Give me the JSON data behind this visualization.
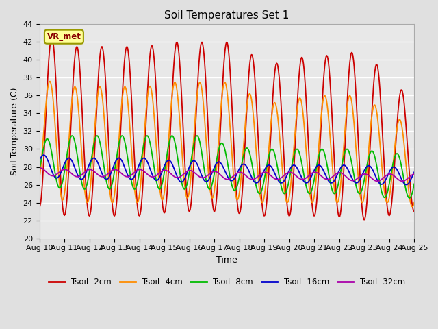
{
  "title": "Soil Temperatures Set 1",
  "xlabel": "Time",
  "ylabel": "Soil Temperature (C)",
  "ylim": [
    20,
    44
  ],
  "yticks": [
    20,
    22,
    24,
    26,
    28,
    30,
    32,
    34,
    36,
    38,
    40,
    42,
    44
  ],
  "n_days": 15,
  "n_points": 600,
  "annotation_text": "VR_met",
  "series": [
    {
      "label": "Tsoil -2cm",
      "color": "#CC0000",
      "amplitudes": [
        10.0,
        9.5,
        9.5,
        9.5,
        9.5,
        9.5,
        9.5,
        9.5,
        9.0,
        8.5,
        9.0,
        9.0,
        9.5,
        8.0,
        6.0
      ],
      "means": [
        33.5,
        32.0,
        32.0,
        32.0,
        32.0,
        32.5,
        32.5,
        32.5,
        31.5,
        31.0,
        31.5,
        31.5,
        31.5,
        30.5,
        29.0
      ],
      "phase": 0.0
    },
    {
      "label": "Tsoil -4cm",
      "color": "#FF8C00",
      "amplitudes": [
        6.0,
        6.5,
        6.5,
        6.5,
        6.5,
        6.5,
        6.5,
        6.5,
        6.0,
        5.5,
        6.0,
        6.0,
        6.0,
        5.0,
        4.5
      ],
      "means": [
        32.0,
        30.5,
        30.5,
        30.5,
        30.5,
        31.0,
        31.0,
        31.0,
        30.0,
        29.5,
        30.0,
        30.0,
        30.0,
        29.0,
        28.0
      ],
      "phase": 0.5
    },
    {
      "label": "Tsoil -8cm",
      "color": "#00BB00",
      "amplitudes": [
        2.5,
        3.0,
        3.0,
        3.0,
        3.0,
        3.0,
        3.0,
        2.5,
        2.5,
        2.5,
        2.5,
        2.5,
        2.5,
        2.5,
        2.5
      ],
      "means": [
        28.5,
        28.5,
        28.5,
        28.5,
        28.5,
        28.5,
        28.5,
        28.0,
        27.5,
        27.5,
        27.5,
        27.5,
        27.5,
        27.0,
        27.0
      ],
      "phase": 1.2
    },
    {
      "label": "Tsoil -16cm",
      "color": "#0000CC",
      "amplitudes": [
        1.2,
        1.2,
        1.2,
        1.2,
        1.2,
        1.2,
        1.2,
        1.0,
        1.0,
        1.0,
        1.0,
        1.0,
        1.0,
        1.0,
        1.0
      ],
      "means": [
        28.2,
        27.8,
        27.8,
        27.8,
        27.8,
        27.5,
        27.5,
        27.5,
        27.2,
        27.2,
        27.2,
        27.2,
        27.2,
        27.0,
        27.0
      ],
      "phase": 2.0
    },
    {
      "label": "Tsoil -32cm",
      "color": "#AA00AA",
      "amplitudes": [
        0.4,
        0.4,
        0.4,
        0.4,
        0.4,
        0.4,
        0.4,
        0.4,
        0.4,
        0.4,
        0.4,
        0.4,
        0.4,
        0.4,
        0.4
      ],
      "means": [
        27.5,
        27.3,
        27.3,
        27.3,
        27.3,
        27.2,
        27.2,
        27.0,
        27.0,
        27.0,
        27.0,
        27.0,
        26.8,
        26.8,
        26.8
      ],
      "phase": 3.0
    }
  ],
  "background_color": "#E8E8E8",
  "grid_color": "#FFFFFF",
  "fig_facecolor": "#E0E0E0",
  "title_fontsize": 11,
  "axis_fontsize": 9,
  "tick_fontsize": 8,
  "legend_fontsize": 8.5,
  "linewidth": 1.3
}
